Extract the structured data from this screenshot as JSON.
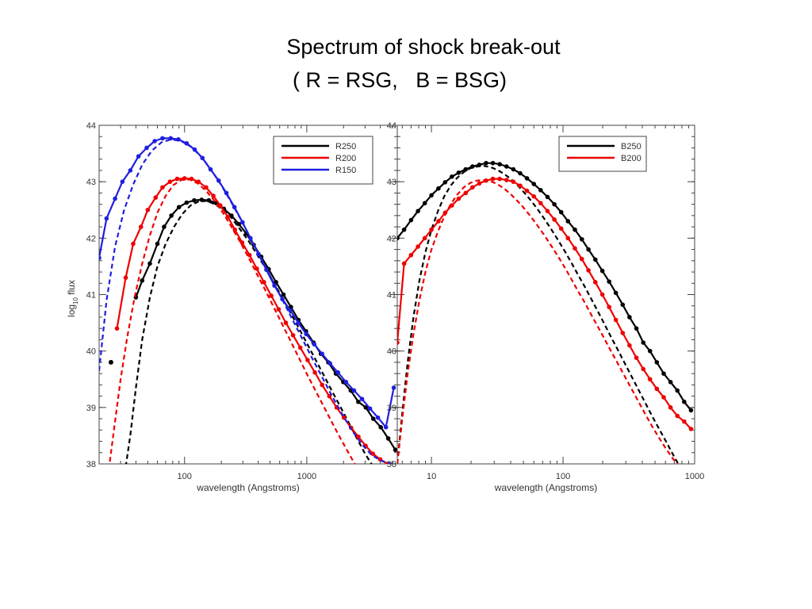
{
  "slide": {
    "title_line1": "Spectrum of shock break-out",
    "title_line2": "( R = RSG,   B = BSG)"
  },
  "chart_data": [
    {
      "type": "line",
      "panel": "left",
      "xlabel": "wavelength (Angstroms)",
      "ylabel_main": "log",
      "ylabel_sub": "10",
      "ylabel_tail": " flux",
      "xscale": "log",
      "xlim": [
        20,
        5500
      ],
      "ylim": [
        38,
        44
      ],
      "x_ticks": [
        {
          "v": 100,
          "label": "100"
        },
        {
          "v": 1000,
          "label": "1000"
        }
      ],
      "y_ticks": [
        {
          "v": 38,
          "label": "38"
        },
        {
          "v": 39,
          "label": "39"
        },
        {
          "v": 40,
          "label": "40"
        },
        {
          "v": 41,
          "label": "41"
        },
        {
          "v": 42,
          "label": "42"
        },
        {
          "v": 43,
          "label": "43"
        },
        {
          "v": 44,
          "label": "44"
        }
      ],
      "legend_position": "top-right",
      "series": [
        {
          "name": "R250",
          "color": "#000000",
          "style": "solid-dots",
          "x": [
            40,
            45,
            52,
            60,
            68,
            78,
            90,
            104,
            120,
            138,
            158,
            182,
            210,
            242,
            278,
            320,
            368,
            424,
            488,
            560,
            645,
            742,
            855,
            985,
            1135,
            1305,
            1500,
            1730,
            1990,
            2290,
            2640,
            3040,
            3500,
            4030,
            4640,
            5300
          ],
          "y": [
            40.95,
            41.25,
            41.55,
            41.9,
            42.2,
            42.4,
            42.55,
            42.63,
            42.67,
            42.68,
            42.67,
            42.62,
            42.52,
            42.4,
            42.25,
            42.08,
            41.88,
            41.67,
            41.45,
            41.22,
            41.0,
            40.78,
            40.55,
            40.35,
            40.15,
            39.95,
            39.8,
            39.6,
            39.45,
            39.3,
            39.1,
            39.0,
            38.8,
            38.65,
            38.45,
            38.25
          ]
        },
        {
          "name": "R250 model",
          "color": "#000000",
          "style": "dashed",
          "x": [
            33,
            36,
            40,
            45,
            52,
            60,
            70,
            82,
            96,
            112,
            130,
            152,
            178,
            208,
            244,
            286,
            334,
            390,
            456,
            534,
            624,
            730,
            855,
            1000,
            1170,
            1370,
            1600,
            1875,
            2190,
            2560,
            3000,
            3500,
            4100,
            4800,
            5300
          ],
          "y": [
            37.95,
            38.5,
            39.35,
            40.2,
            40.95,
            41.5,
            41.9,
            42.2,
            42.43,
            42.58,
            42.65,
            42.66,
            42.6,
            42.5,
            42.35,
            42.15,
            41.95,
            41.72,
            41.48,
            41.22,
            40.96,
            40.69,
            40.42,
            40.14,
            39.86,
            39.58,
            39.3,
            39.02,
            38.74,
            38.46,
            38.18,
            37.95,
            37.9,
            37.9,
            37.9
          ]
        },
        {
          "name": "R200",
          "color": "#ee0000",
          "style": "solid-dots",
          "x": [
            28,
            33,
            38,
            44,
            50,
            58,
            66,
            76,
            87,
            100,
            114,
            130,
            150,
            172,
            196,
            226,
            258,
            296,
            340,
            390,
            446,
            512,
            588,
            674,
            772,
            885,
            1015,
            1165,
            1335,
            1530,
            1755,
            2010,
            2305,
            2645,
            3030,
            3475,
            3985,
            4570,
            5240
          ],
          "y": [
            40.4,
            41.3,
            41.9,
            42.2,
            42.5,
            42.72,
            42.9,
            43.0,
            43.05,
            43.06,
            43.05,
            43.0,
            42.9,
            42.75,
            42.58,
            42.38,
            42.15,
            41.92,
            41.7,
            41.46,
            41.22,
            40.98,
            40.74,
            40.5,
            40.28,
            40.06,
            39.84,
            39.62,
            39.4,
            39.2,
            39.0,
            38.82,
            38.64,
            38.48,
            38.32,
            38.18,
            38.08,
            38.0,
            37.95
          ]
        },
        {
          "name": "R200 model",
          "color": "#ee0000",
          "style": "dashed",
          "x": [
            24,
            27,
            30,
            34,
            39,
            45,
            52,
            60,
            70,
            81,
            94,
            110,
            128,
            150,
            176,
            206,
            242,
            284,
            333,
            390,
            457,
            536,
            628,
            736,
            862,
            1010,
            1185,
            1390,
            1630,
            1910,
            2240,
            2625,
            3080,
            3610,
            4230,
            4960,
            5300
          ],
          "y": [
            37.9,
            38.75,
            39.5,
            40.25,
            40.95,
            41.55,
            42.05,
            42.45,
            42.75,
            42.94,
            43.03,
            43.04,
            42.97,
            42.84,
            42.66,
            42.45,
            42.2,
            41.94,
            41.66,
            41.37,
            41.08,
            40.78,
            40.48,
            40.18,
            39.88,
            39.58,
            39.29,
            39.0,
            38.71,
            38.43,
            38.16,
            37.9,
            37.9,
            37.9,
            37.9,
            37.9,
            37.9
          ]
        },
        {
          "name": "R150",
          "color": "#1f1fe0",
          "style": "solid-dots",
          "x": [
            20,
            23,
            27,
            31,
            36,
            42,
            49,
            57,
            66,
            77,
            89,
            104,
            121,
            140,
            163,
            190,
            220,
            256,
            298,
            346,
            402,
            467,
            543,
            631,
            733,
            852,
            990,
            1150,
            1335,
            1550,
            1800,
            2095,
            2435,
            2830,
            3290,
            3820,
            4440,
            5150
          ],
          "y": [
            41.65,
            42.35,
            42.7,
            43.0,
            43.2,
            43.45,
            43.6,
            43.72,
            43.77,
            43.77,
            43.75,
            43.68,
            43.57,
            43.42,
            43.22,
            43.02,
            42.8,
            42.55,
            42.28,
            42.0,
            41.72,
            41.44,
            41.16,
            40.92,
            40.72,
            40.5,
            40.3,
            40.12,
            39.95,
            39.78,
            39.62,
            39.45,
            39.3,
            39.15,
            38.98,
            38.82,
            38.65,
            39.35
          ]
        },
        {
          "name": "R150 model",
          "color": "#1f1fe0",
          "style": "dashed",
          "x": [
            20,
            23,
            27,
            32,
            38,
            45,
            54,
            65,
            78,
            94,
            113,
            136,
            164,
            198,
            239,
            289,
            349,
            422,
            510,
            617,
            746,
            902,
            1090,
            1318,
            1594,
            1928,
            2332,
            2820,
            3410,
            4124,
            5000
          ],
          "y": [
            39.65,
            40.9,
            41.85,
            42.5,
            42.95,
            43.3,
            43.55,
            43.7,
            43.75,
            43.72,
            43.62,
            43.45,
            43.22,
            42.95,
            42.65,
            42.33,
            41.99,
            41.65,
            41.3,
            40.95,
            40.6,
            40.25,
            39.9,
            39.56,
            39.22,
            38.9,
            38.6,
            38.35,
            38.15,
            38.05,
            38.0
          ]
        },
        {
          "name": "R250 stray point",
          "color": "#000000",
          "style": "dot",
          "x": [
            25
          ],
          "y": [
            39.8
          ]
        }
      ]
    },
    {
      "type": "line",
      "panel": "right",
      "xlabel": "wavelength (Angstroms)",
      "xscale": "log",
      "xlim": [
        5.5,
        1000
      ],
      "ylim": [
        38,
        44
      ],
      "x_ticks": [
        {
          "v": 10,
          "label": "10"
        },
        {
          "v": 100,
          "label": "100"
        },
        {
          "v": 1000,
          "label": "1000"
        }
      ],
      "y_ticks": [
        {
          "v": 38,
          "label": "38"
        },
        {
          "v": 39,
          "label": "39"
        },
        {
          "v": 40,
          "label": "40"
        },
        {
          "v": 41,
          "label": "41"
        },
        {
          "v": 42,
          "label": "42"
        },
        {
          "v": 43,
          "label": "43"
        },
        {
          "v": 44,
          "label": "44"
        }
      ],
      "legend_position": "top-right",
      "series": [
        {
          "name": "B250",
          "color": "#000000",
          "style": "solid-dots",
          "x": [
            5.5,
            6.2,
            7.0,
            7.9,
            8.9,
            10.0,
            11.3,
            12.7,
            14.3,
            16.1,
            18.2,
            20.5,
            23.1,
            26.0,
            29.3,
            33.0,
            37.2,
            41.9,
            47.2,
            53.2,
            60.0,
            67.6,
            76.2,
            85.9,
            96.8,
            109,
            123,
            139,
            156,
            176,
            199,
            224,
            252,
            284,
            320,
            361,
            407,
            458,
            516,
            582,
            656,
            739,
            833,
            938
          ],
          "y": [
            42.0,
            42.15,
            42.32,
            42.48,
            42.62,
            42.76,
            42.88,
            42.99,
            43.09,
            43.16,
            43.22,
            43.27,
            43.3,
            43.33,
            43.33,
            43.31,
            43.27,
            43.22,
            43.15,
            43.06,
            42.96,
            42.85,
            42.73,
            42.6,
            42.46,
            42.3,
            42.15,
            41.98,
            41.8,
            41.62,
            41.42,
            41.23,
            41.03,
            40.82,
            40.6,
            40.4,
            40.15,
            40.0,
            39.8,
            39.6,
            39.45,
            39.3,
            39.1,
            38.95
          ]
        },
        {
          "name": "B250 model",
          "color": "#000000",
          "style": "dashed",
          "x": [
            5.5,
            6.0,
            6.6,
            7.3,
            8.1,
            9.0,
            10.0,
            11.2,
            12.5,
            14.0,
            15.7,
            17.6,
            19.8,
            22.2,
            25.0,
            28.1,
            31.6,
            35.6,
            40.0,
            45.0,
            50.6,
            57.0,
            64.1,
            72.2,
            81.2,
            91.4,
            103,
            116,
            130,
            147,
            165,
            186,
            209,
            235,
            265,
            298,
            335,
            377,
            424,
            477,
            537,
            605,
            680,
            766,
            862,
            970
          ],
          "y": [
            38.0,
            38.9,
            39.8,
            40.6,
            41.25,
            41.75,
            42.15,
            42.48,
            42.74,
            42.93,
            43.07,
            43.17,
            43.24,
            43.27,
            43.28,
            43.26,
            43.21,
            43.14,
            43.05,
            42.94,
            42.81,
            42.67,
            42.51,
            42.34,
            42.16,
            41.97,
            41.77,
            41.56,
            41.35,
            41.13,
            40.91,
            40.68,
            40.45,
            40.22,
            39.99,
            39.76,
            39.53,
            39.3,
            39.07,
            38.84,
            38.62,
            38.4,
            38.18,
            37.96,
            37.9,
            37.9
          ]
        },
        {
          "name": "B200",
          "color": "#ee0000",
          "style": "solid-dots",
          "x": [
            5.5,
            6.2,
            7.0,
            7.9,
            8.9,
            10.0,
            11.3,
            12.7,
            14.3,
            16.1,
            18.2,
            20.5,
            23.1,
            26.0,
            29.3,
            33.0,
            37.2,
            41.9,
            47.2,
            53.2,
            60.0,
            67.6,
            76.2,
            85.9,
            96.8,
            109,
            123,
            139,
            156,
            176,
            199,
            224,
            252,
            284,
            320,
            361,
            407,
            458,
            516,
            582,
            656,
            739,
            833,
            938
          ],
          "y": [
            40.15,
            41.55,
            41.7,
            41.85,
            42.0,
            42.15,
            42.3,
            42.45,
            42.58,
            42.7,
            42.8,
            42.9,
            42.97,
            43.02,
            43.05,
            43.05,
            43.03,
            43.0,
            42.93,
            42.84,
            42.74,
            42.62,
            42.48,
            42.33,
            42.17,
            42.0,
            41.82,
            41.63,
            41.43,
            41.22,
            41.0,
            40.78,
            40.55,
            40.32,
            40.1,
            39.88,
            39.68,
            39.5,
            39.33,
            39.18,
            39.0,
            38.85,
            38.75,
            38.62
          ]
        },
        {
          "name": "B200 model",
          "color": "#ee0000",
          "style": "dashed",
          "x": [
            5.5,
            6.0,
            6.6,
            7.3,
            8.1,
            9.0,
            10.0,
            11.2,
            12.5,
            14.0,
            15.7,
            17.6,
            19.8,
            22.2,
            25.0,
            28.1,
            31.6,
            35.6,
            40.0,
            45.0,
            50.6,
            57.0,
            64.1,
            72.2,
            81.2,
            91.4,
            103,
            116,
            130,
            147,
            165,
            186,
            209,
            235,
            265,
            298,
            335,
            377,
            424,
            477,
            537,
            605,
            680,
            766,
            862,
            970
          ],
          "y": [
            38.0,
            38.8,
            39.6,
            40.3,
            40.9,
            41.4,
            41.8,
            42.12,
            42.38,
            42.6,
            42.77,
            42.9,
            42.98,
            43.02,
            43.03,
            43.01,
            42.96,
            42.88,
            42.78,
            42.66,
            42.53,
            42.38,
            42.22,
            42.05,
            41.87,
            41.68,
            41.48,
            41.27,
            41.06,
            40.85,
            40.63,
            40.41,
            40.19,
            39.97,
            39.75,
            39.53,
            39.31,
            39.09,
            38.87,
            38.66,
            38.46,
            38.27,
            38.1,
            37.95,
            37.9,
            37.9
          ]
        }
      ]
    }
  ]
}
